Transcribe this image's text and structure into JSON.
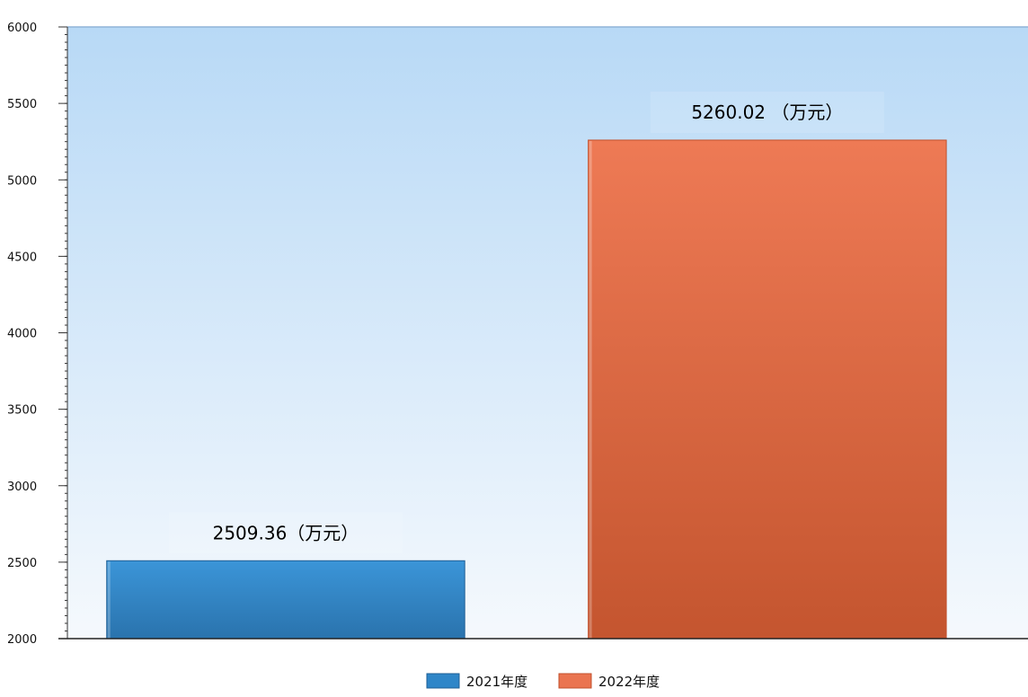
{
  "chart_data": {
    "type": "bar",
    "title": "",
    "xlabel": "",
    "ylabel": "",
    "ylim": [
      2000,
      6000
    ],
    "yticks": [
      2000,
      2500,
      3000,
      3500,
      4000,
      4500,
      5000,
      5500,
      6000
    ],
    "grid": false,
    "legend_position": "bottom-center",
    "series": [
      {
        "name": "2021年度",
        "value": 2509.36,
        "label": "2509.36（万元）",
        "color": "#2f86c8",
        "color_dark": "#1f5f95"
      },
      {
        "name": "2022年度",
        "value": 5260.02,
        "label": "5260.02 （万元）",
        "color": "#ea7450",
        "color_dark": "#c2502c"
      }
    ]
  }
}
